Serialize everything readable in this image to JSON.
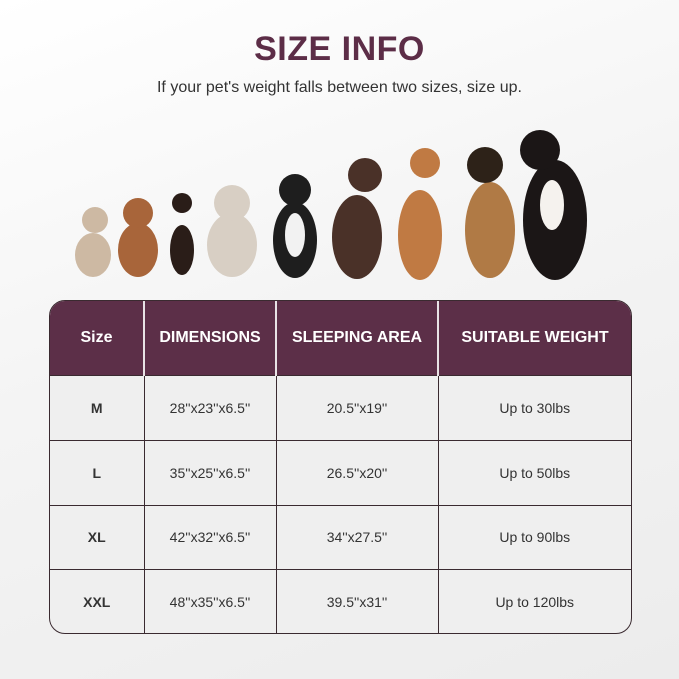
{
  "header": {
    "title": "SIZE INFO",
    "subtitle": "If your pet's weight falls between two sizes, size up."
  },
  "colors": {
    "accent": "#5c2f48",
    "title": "#5c2d47"
  },
  "table": {
    "headers": [
      "Size",
      "DIMENSIONS",
      "SLEEPING AREA",
      "SUITABLE WEIGHT"
    ],
    "rows": [
      {
        "size": "M",
        "dimensions": "28''x23''x6.5''",
        "sleeping_area": "20.5''x19''",
        "weight": "Up to 30lbs"
      },
      {
        "size": "L",
        "dimensions": "35''x25''x6.5''",
        "sleeping_area": "26.5''x20''",
        "weight": "Up to 50lbs"
      },
      {
        "size": "XL",
        "dimensions": "42''x32''x6.5''",
        "sleeping_area": "34''x27.5''",
        "weight": "Up to 90lbs"
      },
      {
        "size": "XXL",
        "dimensions": "48''x35''x6.5''",
        "sleeping_area": "39.5''x31''",
        "weight": "Up to 120lbs"
      }
    ]
  }
}
